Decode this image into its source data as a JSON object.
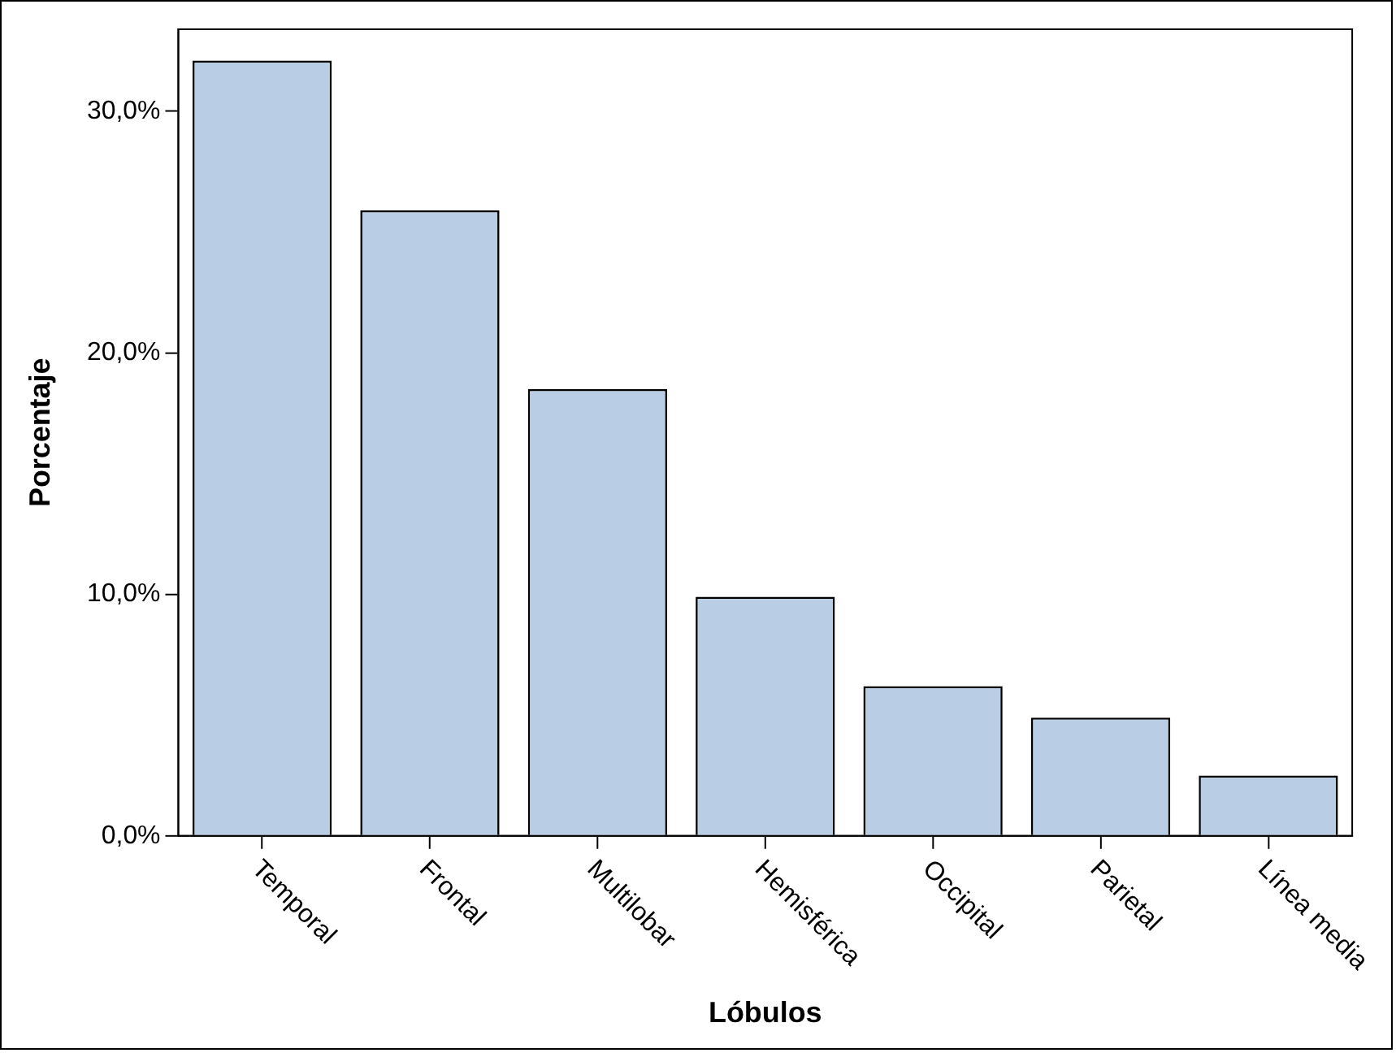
{
  "chart_data": {
    "type": "bar",
    "xlabel": "Lóbulos",
    "ylabel": "Porcentaje",
    "categories": [
      "Temporal",
      "Frontal",
      "Multilobar",
      "Hemisférica",
      "Occipital",
      "Parietal",
      "Línea media"
    ],
    "values": [
      32.1,
      25.9,
      18.5,
      9.9,
      6.2,
      4.9,
      2.5
    ],
    "color": "#b9cde5",
    "ylim": [
      0,
      33.4
    ],
    "yticks": [
      {
        "value": 0,
        "label": "0,0%"
      },
      {
        "value": 10,
        "label": "10,0%"
      },
      {
        "value": 20,
        "label": "20,0%"
      },
      {
        "value": 30,
        "label": "30,0%"
      }
    ],
    "grid": false,
    "legend": false
  }
}
